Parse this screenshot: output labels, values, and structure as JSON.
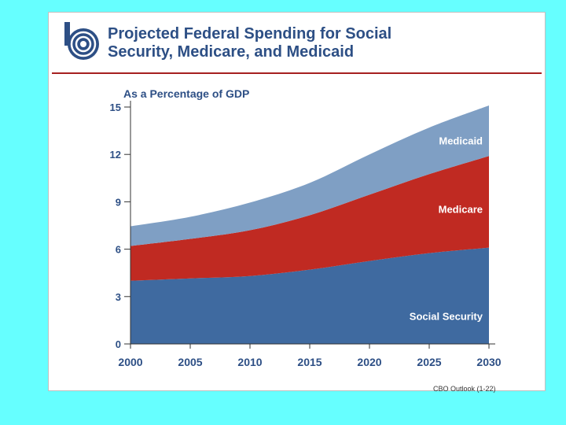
{
  "header": {
    "title_line1": "Projected Federal Spending for Social",
    "title_line2": "Security, Medicare, and Medicaid",
    "logo": "cbo-logo-icon"
  },
  "footer": {
    "source_note": "CBO Outlook (1-22)"
  },
  "colors": {
    "background": "#66ffff",
    "title": "#2d4f85",
    "social_security": "#3f6aa0",
    "medicare": "#c02a22",
    "medicaid": "#7f9fc4",
    "rule": "#a62020"
  },
  "chart_data": {
    "type": "area",
    "stacked": true,
    "ylabel": "As a Percentage of GDP",
    "xlabel": "",
    "x": [
      2000,
      2005,
      2010,
      2015,
      2020,
      2025,
      2030
    ],
    "ylim": [
      0,
      15
    ],
    "yticks": [
      0,
      3,
      6,
      9,
      12,
      15
    ],
    "xticks": [
      2000,
      2005,
      2010,
      2015,
      2020,
      2025,
      2030
    ],
    "series": [
      {
        "name": "Social Security",
        "color": "#3f6aa0",
        "label_color": "#ffffff",
        "values": [
          4.0,
          4.15,
          4.3,
          4.7,
          5.25,
          5.75,
          6.1
        ]
      },
      {
        "name": "Medicare",
        "color": "#c02a22",
        "label_color": "#ffffff",
        "values": [
          2.2,
          2.5,
          2.9,
          3.45,
          4.2,
          5.0,
          5.8
        ]
      },
      {
        "name": "Medicaid",
        "color": "#7f9fc4",
        "label_color": "#ffffff",
        "values": [
          1.25,
          1.4,
          1.75,
          2.05,
          2.55,
          2.95,
          3.2
        ]
      }
    ]
  }
}
